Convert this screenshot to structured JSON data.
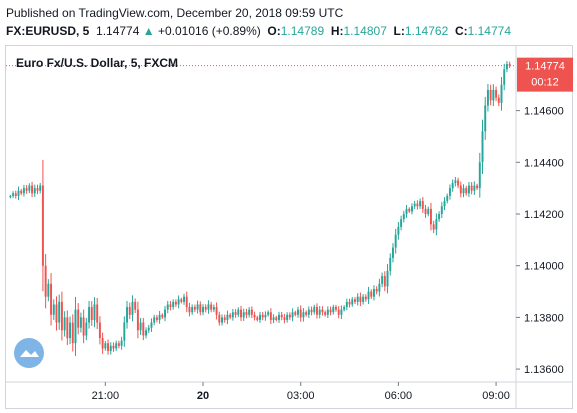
{
  "header": {
    "published": "Published on TradingView.com, December 20, 2018 09:59 UTC",
    "symbol": "FX:EURUSD, 5",
    "last": "1.14774",
    "change_icon": "triangle-up-icon",
    "change": "+0.01016 (+0.89%)",
    "open_label": "O:",
    "open": "1.14789",
    "high_label": "H:",
    "high": "1.14807",
    "low_label": "L:",
    "low": "1.14762",
    "close_label": "C:",
    "close": "1.14774"
  },
  "chart_title": "Euro Fx/U.S. Dollar, 5, FXCM",
  "price_badge": {
    "price": "1.14774",
    "countdown": "00:12",
    "color": "#ef5350"
  },
  "colors": {
    "up": "#26a69a",
    "down": "#ef5350",
    "axis_text": "#131722",
    "border": "#d1d4dc"
  },
  "logo_icon": "tradingview-cloud-icon",
  "chart_data": {
    "type": "candlestick",
    "ylim": [
      1.1355,
      1.1485
    ],
    "y_ticks": [
      "1.14600",
      "1.14400",
      "1.14200",
      "1.14000",
      "1.13800",
      "1.13600"
    ],
    "x_ticks": [
      {
        "label": "21:00",
        "index": 35
      },
      {
        "label": "20",
        "index": 71
      },
      {
        "label": "03:00",
        "index": 107
      },
      {
        "label": "06:00",
        "index": 143
      },
      {
        "label": "09:00",
        "index": 179
      }
    ],
    "closes": [
      1.1427,
      1.1428,
      1.1427,
      1.1429,
      1.1428,
      1.143,
      1.1429,
      1.1431,
      1.1428,
      1.143,
      1.1429,
      1.1431,
      1.14,
      1.1388,
      1.1393,
      1.1381,
      1.1385,
      1.1378,
      1.1386,
      1.1375,
      1.138,
      1.1372,
      1.1378,
      1.137,
      1.1383,
      1.1376,
      1.138,
      1.1373,
      1.1378,
      1.1384,
      1.1379,
      1.1385,
      1.1378,
      1.1372,
      1.1368,
      1.137,
      1.1367,
      1.1369,
      1.1368,
      1.137,
      1.1369,
      1.1371,
      1.1378,
      1.1384,
      1.1381,
      1.1386,
      1.1383,
      1.1375,
      1.1378,
      1.1373,
      1.1375,
      1.1376,
      1.1378,
      1.138,
      1.1379,
      1.1381,
      1.138,
      1.1383,
      1.1385,
      1.1384,
      1.1386,
      1.1385,
      1.1387,
      1.1386,
      1.1388,
      1.1384,
      1.1382,
      1.1384,
      1.1383,
      1.1385,
      1.1382,
      1.1384,
      1.1383,
      1.1385,
      1.1383,
      1.1384,
      1.1381,
      1.1378,
      1.138,
      1.1379,
      1.1381,
      1.138,
      1.1382,
      1.1381,
      1.1383,
      1.138,
      1.1382,
      1.1381,
      1.1383,
      1.1381,
      1.138,
      1.1379,
      1.1381,
      1.138,
      1.1381,
      1.1382,
      1.1379,
      1.138,
      1.1379,
      1.1381,
      1.138,
      1.1379,
      1.1381,
      1.138,
      1.1382,
      1.1381,
      1.1383,
      1.138,
      1.1382,
      1.1381,
      1.1383,
      1.1382,
      1.1384,
      1.1381,
      1.1383,
      1.1382,
      1.1381,
      1.1383,
      1.1382,
      1.1384,
      1.1383,
      1.1381,
      1.1383,
      1.1384,
      1.1386,
      1.1385,
      1.1387,
      1.1386,
      1.1388,
      1.1386,
      1.1388,
      1.1387,
      1.139,
      1.1388,
      1.1391,
      1.139,
      1.1393,
      1.1396,
      1.1392,
      1.1398,
      1.1403,
      1.1407,
      1.1412,
      1.1415,
      1.1418,
      1.142,
      1.1422,
      1.1421,
      1.1423,
      1.1424,
      1.1423,
      1.1425,
      1.1422,
      1.142,
      1.1422,
      1.1416,
      1.1414,
      1.1418,
      1.142,
      1.1423,
      1.1425,
      1.1427,
      1.143,
      1.1432,
      1.1433,
      1.1431,
      1.1428,
      1.143,
      1.1428,
      1.1431,
      1.1429,
      1.1431,
      1.143,
      1.144,
      1.1452,
      1.1462,
      1.1468,
      1.1464,
      1.1468,
      1.1465,
      1.1463,
      1.147,
      1.1476,
      1.1478,
      1.14774
    ]
  }
}
